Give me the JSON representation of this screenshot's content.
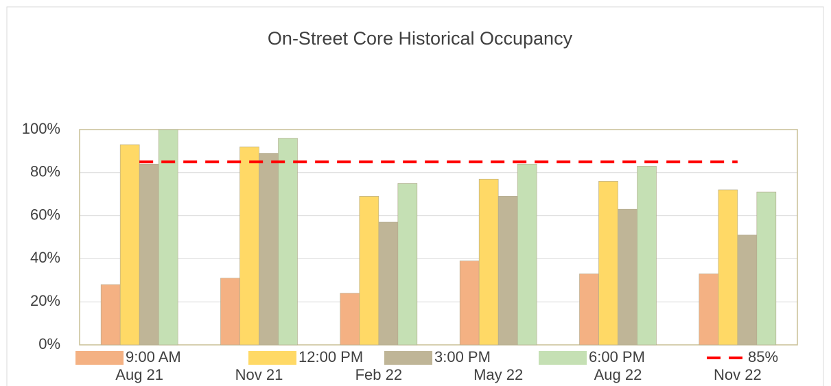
{
  "chart_data": {
    "type": "bar",
    "title": "On-Street Core Historical Occupancy",
    "categories": [
      "Aug 21",
      "Nov 21",
      "Feb 22",
      "May 22",
      "Aug 22",
      "Nov 22"
    ],
    "series": [
      {
        "name": "9:00 AM",
        "color": "#f4b183",
        "values": [
          28,
          31,
          24,
          39,
          33,
          33
        ]
      },
      {
        "name": "12:00 PM",
        "color": "#ffd966",
        "values": [
          93,
          92,
          69,
          77,
          76,
          72
        ]
      },
      {
        "name": "3:00 PM",
        "color": "#bfb597",
        "values": [
          84,
          89,
          57,
          69,
          63,
          51
        ]
      },
      {
        "name": "6:00 PM",
        "color": "#c5e0b4",
        "values": [
          100,
          96,
          75,
          84,
          83,
          71
        ]
      },
      {
        "name": "85%",
        "color": "#ff0000",
        "type": "line",
        "values": [
          85,
          85,
          85,
          85,
          85,
          85
        ]
      }
    ],
    "ylim": [
      0,
      100
    ],
    "yticks": [
      {
        "value": 0,
        "label": "0%"
      },
      {
        "value": 20,
        "label": "20%"
      },
      {
        "value": 40,
        "label": "40%"
      },
      {
        "value": 60,
        "label": "60%"
      },
      {
        "value": 80,
        "label": "80%"
      },
      {
        "value": 100,
        "label": "100%"
      }
    ],
    "grid": true,
    "legend": "bottom"
  }
}
